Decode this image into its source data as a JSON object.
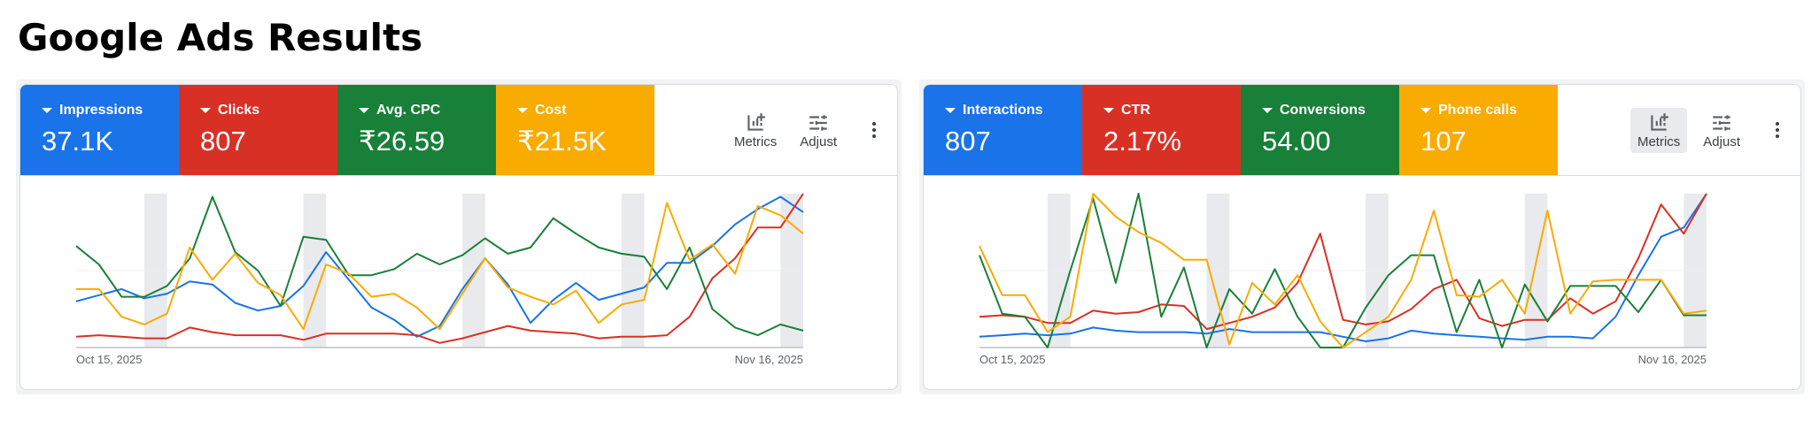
{
  "title": "Google Ads Results",
  "panels": [
    {
      "buttons": [
        "Metrics",
        "Adjust"
      ],
      "chart_data": {
        "type": "line",
        "x_labels": [
          "Oct 15, 2025",
          "Nov 16, 2025"
        ],
        "ylim": [
          0,
          100
        ],
        "series": [
          {
            "name": "Impressions",
            "total": "37.1K",
            "color": "#1a73e8",
            "values": [
              30,
              34,
              38,
              32,
              35,
              43,
              41,
              29,
              24,
              27,
              40,
              62,
              44,
              26,
              18,
              7,
              14,
              38,
              58,
              41,
              16,
              31,
              42,
              31,
              35,
              39,
              55,
              55,
              66,
              80,
              90,
              98,
              88
            ]
          },
          {
            "name": "Clicks",
            "total": "807",
            "color": "#d93025",
            "values": [
              7,
              8,
              7,
              6,
              6,
              13,
              10,
              8,
              8,
              8,
              5,
              9,
              9,
              9,
              9,
              8,
              3,
              6,
              10,
              14,
              11,
              10,
              9,
              6,
              7,
              7,
              8,
              20,
              45,
              58,
              78,
              78,
              100
            ]
          },
          {
            "name": "Avg. CPC",
            "total": "₹26.59",
            "color": "#188038",
            "values": [
              66,
              54,
              33,
              33,
              40,
              58,
              98,
              62,
              50,
              27,
              72,
              70,
              47,
              47,
              51,
              61,
              54,
              60,
              71,
              61,
              65,
              84,
              74,
              65,
              61,
              59,
              38,
              65,
              25,
              13,
              8,
              15,
              11
            ]
          },
          {
            "name": "Cost",
            "total": "₹21.5K",
            "color": "#f9ab00",
            "values": [
              38,
              38,
              20,
              15,
              22,
              65,
              44,
              61,
              42,
              34,
              12,
              54,
              48,
              33,
              35,
              26,
              12,
              35,
              58,
              39,
              33,
              28,
              37,
              16,
              28,
              31,
              94,
              57,
              67,
              48,
              92,
              86,
              74
            ]
          }
        ]
      }
    },
    {
      "buttons": [
        "Metrics",
        "Adjust"
      ],
      "chart_data": {
        "type": "line",
        "x_labels": [
          "Oct 15, 2025",
          "Nov 16, 2025"
        ],
        "ylim": [
          0,
          100
        ],
        "series": [
          {
            "name": "Interactions",
            "total": "807",
            "color": "#1a73e8",
            "values": [
              7,
              8,
              9,
              8,
              9,
              13,
              11,
              10,
              10,
              10,
              9,
              12,
              10,
              10,
              10,
              10,
              7,
              4,
              6,
              11,
              9,
              8,
              7,
              6,
              5,
              7,
              7,
              6,
              20,
              47,
              72,
              78,
              100
            ]
          },
          {
            "name": "CTR",
            "total": "2.17%",
            "color": "#d93025",
            "values": [
              20,
              21,
              20,
              16,
              16,
              24,
              22,
              23,
              28,
              27,
              12,
              16,
              20,
              26,
              42,
              74,
              18,
              15,
              17,
              25,
              38,
              44,
              19,
              14,
              18,
              18,
              32,
              22,
              30,
              58,
              93,
              74,
              100
            ]
          },
          {
            "name": "Conversions",
            "total": "54.00",
            "color": "#188038",
            "values": [
              60,
              22,
              20,
              0,
              50,
              97,
              42,
              100,
              20,
              52,
              0,
              38,
              22,
              51,
              20,
              0,
              0,
              26,
              47,
              60,
              60,
              10,
              44,
              0,
              41,
              17,
              40,
              40,
              40,
              23,
              44,
              21,
              21
            ]
          },
          {
            "name": "Phone calls",
            "total": "107",
            "color": "#f9ab00",
            "values": [
              66,
              34,
              34,
              10,
              20,
              100,
              85,
              75,
              68,
              57,
              57,
              2,
              42,
              28,
              47,
              17,
              0,
              10,
              20,
              44,
              89,
              34,
              33,
              44,
              22,
              89,
              22,
              43,
              44,
              44,
              44,
              22,
              24
            ]
          }
        ]
      }
    }
  ]
}
